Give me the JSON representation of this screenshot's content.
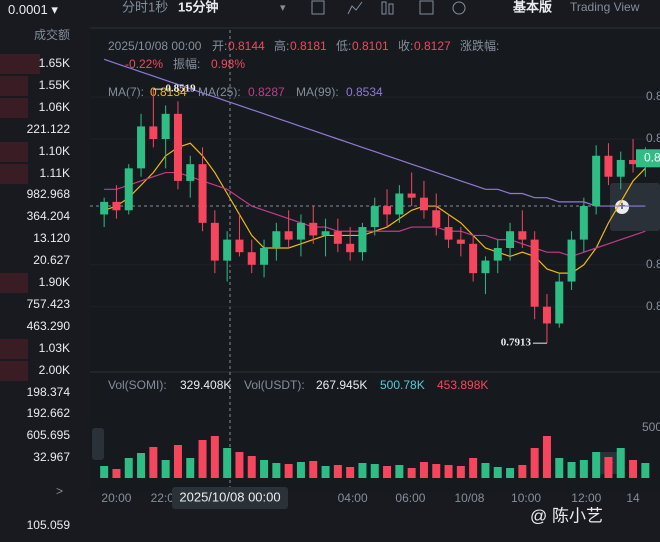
{
  "left": {
    "tick_size": "0.0001",
    "header": "成交额",
    "rows": [
      "1.65K",
      "1.55K",
      "1.06K",
      "221.122",
      "1.10K",
      "1.11K",
      "982.968",
      "364.204",
      "13.120",
      "20.627",
      "1.90K",
      "757.423",
      "463.290",
      "1.03K",
      "2.00K",
      "198.374",
      "192.662",
      "605.695",
      "32.967"
    ],
    "more": ">",
    "last": "105.059"
  },
  "toolbar": {
    "tabs": [
      "分时",
      "1秒",
      "15分钟"
    ],
    "basic": "基本版",
    "tv": "Trading View"
  },
  "info": {
    "date": "2025/10/08 00:00",
    "fields": [
      [
        "开:",
        "0.8144"
      ],
      [
        "高:",
        "0.8181"
      ],
      [
        "低:",
        "0.8101"
      ],
      [
        "收:",
        "0.8127"
      ],
      [
        "涨跌幅:",
        "-0.22%"
      ],
      [
        "振幅:",
        "0.98%"
      ]
    ]
  },
  "watermark": "@ 陈小艺",
  "crosshair_label": "2025/10/08 00:00",
  "chart_data": {
    "type": "candlestick",
    "up_color": "#2ebd85",
    "down_color": "#f6465d",
    "ylim": [
      0.7849,
      0.866
    ],
    "yticks": [
      {
        "value": 0.85,
        "label": "0.8"
      },
      {
        "value": 0.84,
        "label": "0.8"
      },
      {
        "value": 0.81,
        "label": "0.8"
      },
      {
        "value": 0.8,
        "label": "0.8"
      }
    ],
    "xlim": [
      -0.5,
      45
    ],
    "xticks": [
      {
        "value": 1,
        "label": "20:00"
      },
      {
        "value": 5,
        "label": "22:00"
      },
      {
        "value": 20.2,
        "label": "04:00"
      },
      {
        "value": 24.9,
        "label": "06:00"
      },
      {
        "value": 29.7,
        "label": "10/08"
      },
      {
        "value": 34.3,
        "label": "10:00"
      },
      {
        "value": 39.2,
        "label": "12:00"
      },
      {
        "value": 43,
        "label": "14"
      }
    ],
    "ohlc": [
      [
        0.822,
        0.826,
        0.819,
        0.825
      ],
      [
        0.825,
        0.829,
        0.821,
        0.823
      ],
      [
        0.823,
        0.834,
        0.822,
        0.833
      ],
      [
        0.833,
        0.846,
        0.831,
        0.843
      ],
      [
        0.843,
        0.8519,
        0.838,
        0.84
      ],
      [
        0.84,
        0.848,
        0.833,
        0.846
      ],
      [
        0.846,
        0.849,
        0.828,
        0.83
      ],
      [
        0.83,
        0.836,
        0.826,
        0.834
      ],
      [
        0.834,
        0.838,
        0.818,
        0.82
      ],
      [
        0.82,
        0.823,
        0.808,
        0.811
      ],
      [
        0.811,
        0.818,
        0.806,
        0.816
      ],
      [
        0.816,
        0.822,
        0.812,
        0.813
      ],
      [
        0.813,
        0.816,
        0.808,
        0.81
      ],
      [
        0.81,
        0.816,
        0.807,
        0.814
      ],
      [
        0.814,
        0.82,
        0.811,
        0.818
      ],
      [
        0.818,
        0.823,
        0.814,
        0.816
      ],
      [
        0.816,
        0.822,
        0.812,
        0.82
      ],
      [
        0.82,
        0.824,
        0.815,
        0.817
      ],
      [
        0.817,
        0.821,
        0.812,
        0.818
      ],
      [
        0.818,
        0.821,
        0.813,
        0.815
      ],
      [
        0.815,
        0.819,
        0.811,
        0.813
      ],
      [
        0.813,
        0.82,
        0.811,
        0.819
      ],
      [
        0.819,
        0.826,
        0.817,
        0.824
      ],
      [
        0.824,
        0.828,
        0.819,
        0.822
      ],
      [
        0.822,
        0.829,
        0.82,
        0.827
      ],
      [
        0.827,
        0.832,
        0.824,
        0.826
      ],
      [
        0.826,
        0.83,
        0.821,
        0.823
      ],
      [
        0.823,
        0.827,
        0.817,
        0.819
      ],
      [
        0.819,
        0.822,
        0.814,
        0.816
      ],
      [
        0.816,
        0.819,
        0.812,
        0.815
      ],
      [
        0.815,
        0.817,
        0.806,
        0.808
      ],
      [
        0.808,
        0.812,
        0.803,
        0.811
      ],
      [
        0.811,
        0.816,
        0.808,
        0.814
      ],
      [
        0.814,
        0.82,
        0.811,
        0.818
      ],
      [
        0.818,
        0.823,
        0.814,
        0.816
      ],
      [
        0.816,
        0.818,
        0.797,
        0.8
      ],
      [
        0.8,
        0.803,
        0.7913,
        0.796
      ],
      [
        0.796,
        0.808,
        0.795,
        0.806
      ],
      [
        0.806,
        0.818,
        0.804,
        0.816
      ],
      [
        0.816,
        0.826,
        0.813,
        0.824
      ],
      [
        0.824,
        0.8385,
        0.822,
        0.836
      ],
      [
        0.836,
        0.839,
        0.829,
        0.831
      ],
      [
        0.831,
        0.837,
        0.828,
        0.835
      ],
      [
        0.835,
        0.84,
        0.832,
        0.834
      ],
      [
        0.834,
        0.838,
        0.831,
        0.836
      ]
    ],
    "high_label": {
      "index": 4,
      "value": 0.8519,
      "label": "0.8519"
    },
    "low_label": {
      "index": 36,
      "value": 0.7913,
      "label": "0.7913"
    },
    "last_price": {
      "value": 0.8354,
      "label": "0.8"
    },
    "ma": [
      {
        "name": "MA(7):",
        "value_label": "0.8134",
        "color": "#f0b90b",
        "values": [
          0.823,
          0.824,
          0.826,
          0.829,
          0.832,
          0.836,
          0.838,
          0.839,
          0.836,
          0.832,
          0.827,
          0.822,
          0.817,
          0.814,
          0.814,
          0.814,
          0.815,
          0.816,
          0.817,
          0.817,
          0.817,
          0.817,
          0.818,
          0.819,
          0.821,
          0.823,
          0.824,
          0.824,
          0.822,
          0.82,
          0.817,
          0.814,
          0.813,
          0.812,
          0.813,
          0.812,
          0.809,
          0.808,
          0.808,
          0.81,
          0.814,
          0.82,
          0.825,
          0.83,
          0.833
        ]
      },
      {
        "name": "MA(25):",
        "value_label": "0.8287",
        "color": "#c03c8c",
        "values": [
          0.828,
          0.828,
          0.829,
          0.83,
          0.831,
          0.832,
          0.832,
          0.831,
          0.83,
          0.829,
          0.828,
          0.826,
          0.824,
          0.823,
          0.822,
          0.821,
          0.82,
          0.819,
          0.819,
          0.818,
          0.818,
          0.818,
          0.818,
          0.818,
          0.818,
          0.819,
          0.819,
          0.819,
          0.818,
          0.818,
          0.817,
          0.817,
          0.816,
          0.816,
          0.815,
          0.814,
          0.813,
          0.813,
          0.812,
          0.813,
          0.814,
          0.815,
          0.816,
          0.817,
          0.818
        ]
      },
      {
        "name": "MA(99):",
        "value_label": "0.8534",
        "color": "#8f7ad6",
        "values": [
          0.859,
          0.858,
          0.857,
          0.856,
          0.855,
          0.854,
          0.853,
          0.852,
          0.851,
          0.85,
          0.849,
          0.848,
          0.847,
          0.846,
          0.845,
          0.844,
          0.843,
          0.842,
          0.841,
          0.84,
          0.839,
          0.838,
          0.837,
          0.836,
          0.835,
          0.834,
          0.833,
          0.832,
          0.831,
          0.83,
          0.829,
          0.828,
          0.828,
          0.827,
          0.827,
          0.826,
          0.826,
          0.825,
          0.825,
          0.825,
          0.824,
          0.824,
          0.824,
          0.824,
          0.824
        ]
      }
    ],
    "volume": {
      "legend": [
        [
          "Vol(SOMI):",
          "329.408K"
        ],
        [
          "Vol(USDT):",
          "267.945K"
        ],
        [
          "",
          "500.78K"
        ],
        [
          "",
          "453.898K"
        ]
      ],
      "ylim": [
        0,
        860
      ],
      "yticks": [
        500
      ],
      "values": [
        120,
        90,
        200,
        250,
        310,
        180,
        330,
        200,
        380,
        420,
        300,
        260,
        220,
        180,
        150,
        140,
        160,
        170,
        120,
        130,
        110,
        150,
        140,
        120,
        130,
        100,
        160,
        140,
        130,
        120,
        200,
        150,
        110,
        100,
        130,
        300,
        420,
        200,
        160,
        180,
        260,
        210,
        300,
        180,
        150
      ]
    }
  }
}
